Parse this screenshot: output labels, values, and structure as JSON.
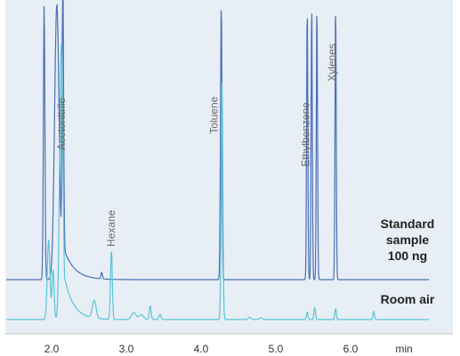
{
  "chart_data": {
    "type": "line",
    "x_unit": "min",
    "x_ticks": [
      2.0,
      3.0,
      4.0,
      5.0,
      6.0
    ],
    "tick_labels": [
      "2.0",
      "3.0",
      "4.0",
      "5.0",
      "6.0"
    ],
    "xlim": [
      1.4,
      7.4
    ],
    "grid": false,
    "legend": "none",
    "series": [
      {
        "name": "Standard sample 100 ng",
        "label_lines": [
          "Standard",
          "sample",
          "100 ng"
        ],
        "color": "#4a6fb5",
        "baseline_y_pct": 0,
        "peaks": [
          {
            "x": 1.9,
            "height_pct": 100,
            "width": 0.01
          },
          {
            "x": 2.07,
            "height_pct": 100,
            "width": 0.03,
            "tail": 0.14
          },
          {
            "x": 2.15,
            "height_pct": 100,
            "width": 0.01
          },
          {
            "x": 2.67,
            "height_pct": 2.4,
            "width": 0.01
          },
          {
            "x": 4.27,
            "height_pct": 100,
            "width": 0.01
          },
          {
            "x": 5.42,
            "height_pct": 100,
            "width": 0.008
          },
          {
            "x": 5.48,
            "height_pct": 100,
            "width": 0.008
          },
          {
            "x": 5.55,
            "height_pct": 100,
            "width": 0.008
          },
          {
            "x": 5.8,
            "height_pct": 100,
            "width": 0.008
          }
        ]
      },
      {
        "name": "Room air",
        "label_lines": [
          "Room air"
        ],
        "color": "#57c5d6",
        "baseline_y_pct": -14.5,
        "peaks": [
          {
            "x": 1.96,
            "height_pct": 29,
            "width": 0.018
          },
          {
            "x": 2.02,
            "height_pct": 18,
            "width": 0.014
          },
          {
            "x": 2.13,
            "height_pct": 100,
            "width": 0.022,
            "tail": 0.12
          },
          {
            "x": 2.57,
            "height_pct": 6.5,
            "width": 0.025
          },
          {
            "x": 2.8,
            "height_pct": 25,
            "width": 0.012
          },
          {
            "x": 3.1,
            "height_pct": 2.5,
            "width": 0.03
          },
          {
            "x": 3.2,
            "height_pct": 1.8,
            "width": 0.03
          },
          {
            "x": 3.32,
            "height_pct": 5.0,
            "width": 0.012
          },
          {
            "x": 3.45,
            "height_pct": 1.8,
            "width": 0.015
          },
          {
            "x": 4.28,
            "height_pct": 86,
            "width": 0.011
          },
          {
            "x": 4.65,
            "height_pct": 0.8,
            "width": 0.02
          },
          {
            "x": 4.8,
            "height_pct": 0.7,
            "width": 0.02
          },
          {
            "x": 5.42,
            "height_pct": 2.8,
            "width": 0.01
          },
          {
            "x": 5.52,
            "height_pct": 4.5,
            "width": 0.01
          },
          {
            "x": 5.8,
            "height_pct": 4.0,
            "width": 0.01
          },
          {
            "x": 6.31,
            "height_pct": 3.0,
            "width": 0.01
          }
        ]
      }
    ],
    "peak_labels": [
      {
        "text": "Acetonitrile",
        "x": 2.13,
        "height_pct": 47
      },
      {
        "text": "Hexane",
        "x": 2.8,
        "height_pct": 12
      },
      {
        "text": "Toluene",
        "x": 4.17,
        "height_pct": 53
      },
      {
        "text": "Ethylbenzene",
        "x": 5.4,
        "height_pct": 41
      },
      {
        "text": "Xylenes",
        "x": 5.75,
        "height_pct": 72
      }
    ]
  }
}
